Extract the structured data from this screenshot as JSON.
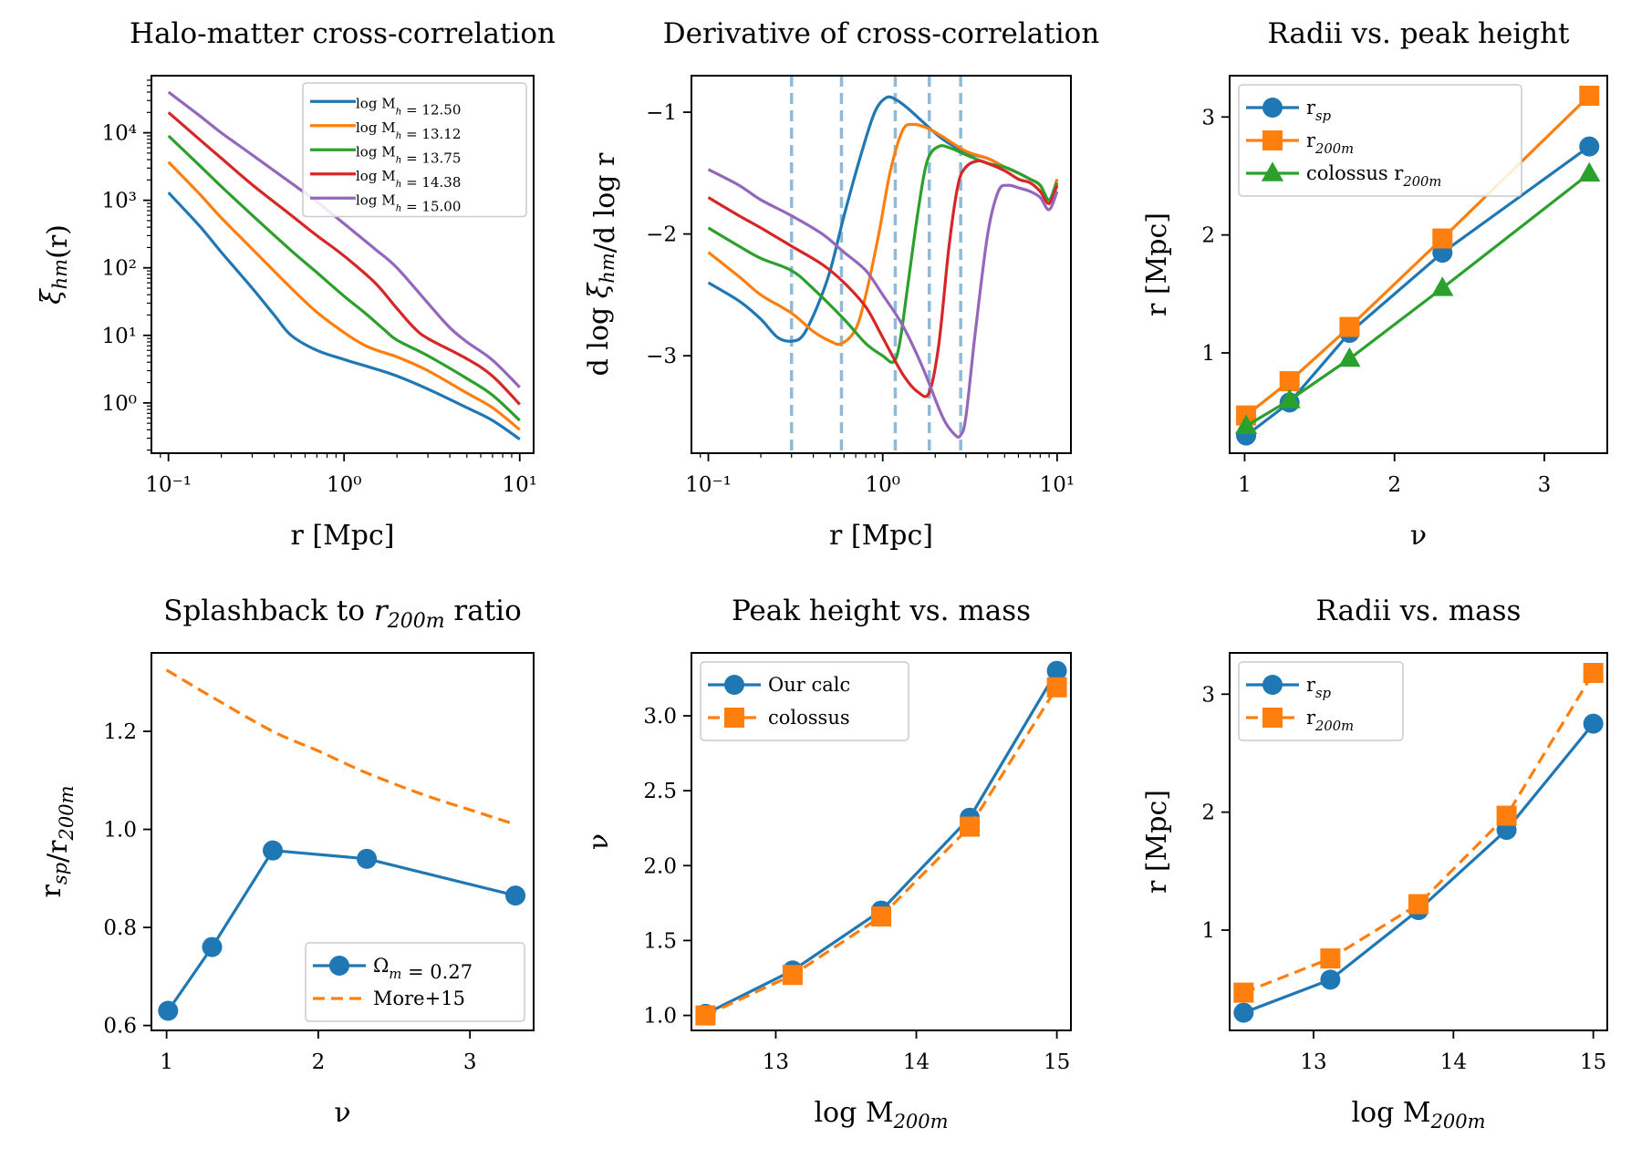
{
  "colors": {
    "blue": "#1f77b4",
    "orange": "#ff7f0e",
    "green": "#2ca02c",
    "red": "#d62728",
    "purple": "#9467bd"
  },
  "chart_data": [
    {
      "type": "line",
      "title": "Halo-matter cross-correlation",
      "xlabel": "r [Mpc]",
      "ylabel": "ξhm(r)",
      "xscale": "log",
      "yscale": "log",
      "xlim": [
        0.08,
        12
      ],
      "ylim": [
        0.18,
        70000
      ],
      "xticks": [
        {
          "v": 0.1,
          "label": "10⁻¹"
        },
        {
          "v": 1,
          "label": "10⁰"
        },
        {
          "v": 10,
          "label": "10¹"
        }
      ],
      "yticks": [
        {
          "v": 1,
          "label": "10⁰"
        },
        {
          "v": 10,
          "label": "10¹"
        },
        {
          "v": 100,
          "label": "10²"
        },
        {
          "v": 1000,
          "label": "10³"
        },
        {
          "v": 10000,
          "label": "10⁴"
        }
      ],
      "legend_position": "top-right",
      "series": [
        {
          "name": "log M_h = 12.50",
          "color": "blue",
          "x": [
            0.1,
            0.15,
            0.2,
            0.3,
            0.4,
            0.5,
            0.7,
            1.0,
            1.5,
            2,
            3,
            5,
            7,
            10
          ],
          "y": [
            1300,
            420,
            170,
            50,
            20,
            10,
            6,
            4.4,
            3.2,
            2.5,
            1.6,
            0.85,
            0.55,
            0.29
          ]
        },
        {
          "name": "log M_h = 13.12",
          "color": "orange",
          "x": [
            0.1,
            0.15,
            0.2,
            0.3,
            0.5,
            0.7,
            1.0,
            1.3,
            1.6,
            2,
            3,
            5,
            7,
            10
          ],
          "y": [
            3700,
            1250,
            550,
            190,
            50,
            22,
            11,
            7.2,
            5.8,
            4.8,
            3.0,
            1.4,
            0.85,
            0.4
          ]
        },
        {
          "name": "log M_h = 13.75",
          "color": "green",
          "x": [
            0.1,
            0.15,
            0.2,
            0.3,
            0.5,
            0.7,
            1.0,
            1.3,
            1.7,
            2,
            3,
            5,
            7,
            10
          ],
          "y": [
            9000,
            3300,
            1600,
            600,
            180,
            85,
            38,
            22,
            12,
            8.5,
            5.0,
            2.3,
            1.3,
            0.55
          ]
        },
        {
          "name": "log M_h = 14.38",
          "color": "red",
          "x": [
            0.1,
            0.15,
            0.2,
            0.3,
            0.5,
            0.7,
            1.0,
            1.5,
            2,
            2.5,
            3,
            5,
            7,
            10
          ],
          "y": [
            20000,
            8000,
            4200,
            1700,
            600,
            300,
            150,
            60,
            25,
            13,
            9,
            4.5,
            2.5,
            0.95
          ]
        },
        {
          "name": "log M_h = 15.00",
          "color": "purple",
          "x": [
            0.1,
            0.15,
            0.2,
            0.3,
            0.5,
            0.7,
            1.0,
            1.5,
            2,
            3,
            4,
            5,
            7,
            10
          ],
          "y": [
            40000,
            18000,
            10000,
            4700,
            1800,
            950,
            450,
            190,
            100,
            30,
            13,
            8,
            4.3,
            1.7
          ]
        }
      ]
    },
    {
      "type": "line",
      "title": "Derivative of cross-correlation",
      "xlabel": "r [Mpc]",
      "ylabel": "d log ξhm/d log r",
      "xscale": "log",
      "xlim": [
        0.08,
        12
      ],
      "ylim": [
        -3.8,
        -0.7
      ],
      "xticks": [
        {
          "v": 0.1,
          "label": "10⁻¹"
        },
        {
          "v": 1,
          "label": "10⁰"
        },
        {
          "v": 10,
          "label": "10¹"
        }
      ],
      "yticks": [
        {
          "v": -1,
          "label": "−1"
        },
        {
          "v": -2,
          "label": "−2"
        },
        {
          "v": -3,
          "label": "−3"
        }
      ],
      "vlines": [
        0.3,
        0.58,
        1.18,
        1.85,
        2.8
      ],
      "series": [
        {
          "name": "log M_h = 12.50",
          "color": "blue",
          "x": [
            0.1,
            0.15,
            0.2,
            0.25,
            0.3,
            0.35,
            0.42,
            0.5,
            0.6,
            0.75,
            0.9,
            1.05,
            1.2,
            1.4,
            1.7,
            2.2,
            3,
            4,
            5,
            6,
            7,
            8,
            9,
            10
          ],
          "y": [
            -2.4,
            -2.55,
            -2.7,
            -2.85,
            -2.88,
            -2.83,
            -2.6,
            -2.3,
            -1.85,
            -1.35,
            -1.0,
            -0.88,
            -0.9,
            -0.97,
            -1.08,
            -1.22,
            -1.33,
            -1.38,
            -1.45,
            -1.5,
            -1.55,
            -1.6,
            -1.72,
            -1.55
          ]
        },
        {
          "name": "log M_h = 13.12",
          "color": "orange",
          "x": [
            0.1,
            0.15,
            0.2,
            0.3,
            0.4,
            0.5,
            0.58,
            0.7,
            0.8,
            0.95,
            1.1,
            1.3,
            1.5,
            1.8,
            2.2,
            3,
            4,
            5,
            6,
            7,
            8,
            9,
            10
          ],
          "y": [
            -2.15,
            -2.35,
            -2.5,
            -2.65,
            -2.8,
            -2.88,
            -2.9,
            -2.78,
            -2.5,
            -2.0,
            -1.5,
            -1.15,
            -1.1,
            -1.13,
            -1.2,
            -1.32,
            -1.38,
            -1.45,
            -1.5,
            -1.55,
            -1.6,
            -1.75,
            -1.55
          ]
        },
        {
          "name": "log M_h = 13.75",
          "color": "green",
          "x": [
            0.1,
            0.15,
            0.2,
            0.3,
            0.4,
            0.6,
            0.8,
            1.0,
            1.15,
            1.25,
            1.4,
            1.6,
            1.8,
            2.1,
            2.5,
            3,
            4,
            5,
            6,
            7,
            8,
            9,
            10
          ],
          "y": [
            -1.95,
            -2.1,
            -2.2,
            -2.3,
            -2.45,
            -2.7,
            -2.9,
            -3.0,
            -3.05,
            -2.9,
            -2.4,
            -1.8,
            -1.4,
            -1.28,
            -1.3,
            -1.35,
            -1.42,
            -1.45,
            -1.5,
            -1.55,
            -1.6,
            -1.72,
            -1.58
          ]
        },
        {
          "name": "log M_h = 14.38",
          "color": "red",
          "x": [
            0.1,
            0.15,
            0.2,
            0.3,
            0.45,
            0.6,
            0.8,
            1.0,
            1.3,
            1.6,
            1.85,
            2.1,
            2.4,
            2.7,
            3.0,
            3.5,
            4,
            5,
            6,
            7,
            8,
            9,
            10
          ],
          "y": [
            -1.7,
            -1.85,
            -1.95,
            -2.1,
            -2.25,
            -2.4,
            -2.6,
            -2.85,
            -3.15,
            -3.3,
            -3.3,
            -2.9,
            -2.1,
            -1.6,
            -1.45,
            -1.4,
            -1.42,
            -1.48,
            -1.55,
            -1.58,
            -1.65,
            -1.75,
            -1.6
          ]
        },
        {
          "name": "log M_h = 15.00",
          "color": "purple",
          "x": [
            0.1,
            0.15,
            0.2,
            0.3,
            0.45,
            0.6,
            0.8,
            1.0,
            1.3,
            1.7,
            2.2,
            2.6,
            2.8,
            3.0,
            3.4,
            4,
            4.6,
            5.2,
            6,
            7,
            8,
            9,
            10
          ],
          "y": [
            -1.47,
            -1.6,
            -1.72,
            -1.85,
            -2.0,
            -2.15,
            -2.3,
            -2.5,
            -2.75,
            -3.1,
            -3.5,
            -3.65,
            -3.65,
            -3.5,
            -2.8,
            -2.0,
            -1.65,
            -1.6,
            -1.62,
            -1.65,
            -1.7,
            -1.8,
            -1.65
          ]
        }
      ]
    },
    {
      "type": "line",
      "title": "Radii vs. peak height",
      "xlabel": "ν",
      "ylabel": "r [Mpc]",
      "xlim": [
        0.9,
        3.42
      ],
      "ylim": [
        0.15,
        3.35
      ],
      "xticks": [
        {
          "v": 1,
          "label": "1"
        },
        {
          "v": 2,
          "label": "2"
        },
        {
          "v": 3,
          "label": "3"
        }
      ],
      "yticks": [
        {
          "v": 1,
          "label": "1"
        },
        {
          "v": 2,
          "label": "2"
        },
        {
          "v": 3,
          "label": "3"
        }
      ],
      "legend_position": "top-left",
      "series": [
        {
          "name": "r_sp",
          "color": "blue",
          "marker": "circle",
          "x": [
            1.01,
            1.3,
            1.7,
            2.32,
            3.3
          ],
          "y": [
            0.3,
            0.58,
            1.17,
            1.85,
            2.75
          ]
        },
        {
          "name": "r_200m",
          "color": "orange",
          "marker": "square",
          "x": [
            1.01,
            1.3,
            1.7,
            2.32,
            3.3
          ],
          "y": [
            0.47,
            0.76,
            1.22,
            1.97,
            3.18
          ]
        },
        {
          "name": "colossus r_200m",
          "color": "green",
          "marker": "triangle",
          "x": [
            1.01,
            1.3,
            1.7,
            2.32,
            3.3
          ],
          "y": [
            0.38,
            0.6,
            0.95,
            1.55,
            2.52
          ]
        }
      ]
    },
    {
      "type": "line",
      "title": "Splashback to r_200m ratio",
      "xlabel": "ν",
      "ylabel": "r_sp/r_200m",
      "xlim": [
        0.9,
        3.42
      ],
      "ylim": [
        0.59,
        1.36
      ],
      "xticks": [
        {
          "v": 1,
          "label": "1"
        },
        {
          "v": 2,
          "label": "2"
        },
        {
          "v": 3,
          "label": "3"
        }
      ],
      "yticks": [
        {
          "v": 0.6,
          "label": "0.6"
        },
        {
          "v": 0.8,
          "label": "0.8"
        },
        {
          "v": 1.0,
          "label": "1.0"
        },
        {
          "v": 1.2,
          "label": "1.2"
        }
      ],
      "legend_position": "lower-right",
      "series": [
        {
          "name": "Ω_m = 0.27",
          "color": "blue",
          "marker": "circle",
          "x": [
            1.01,
            1.3,
            1.7,
            2.32,
            3.3
          ],
          "y": [
            0.63,
            0.76,
            0.957,
            0.94,
            0.865
          ]
        },
        {
          "name": "More+15",
          "color": "orange",
          "dash": true,
          "x": [
            1.0,
            1.3,
            1.7,
            2.0,
            2.32,
            2.7,
            3.0,
            3.3
          ],
          "y": [
            1.325,
            1.27,
            1.2,
            1.16,
            1.115,
            1.07,
            1.04,
            1.01
          ]
        }
      ]
    },
    {
      "type": "line",
      "title": "Peak height vs. mass",
      "xlabel": "log M_200m",
      "ylabel": "ν",
      "xlim": [
        12.4,
        15.1
      ],
      "ylim": [
        0.9,
        3.42
      ],
      "xticks": [
        {
          "v": 13,
          "label": "13"
        },
        {
          "v": 14,
          "label": "14"
        },
        {
          "v": 15,
          "label": "15"
        }
      ],
      "yticks": [
        {
          "v": 1.0,
          "label": "1.0"
        },
        {
          "v": 1.5,
          "label": "1.5"
        },
        {
          "v": 2.0,
          "label": "2.0"
        },
        {
          "v": 2.5,
          "label": "2.5"
        },
        {
          "v": 3.0,
          "label": "3.0"
        }
      ],
      "legend_position": "top-left",
      "series": [
        {
          "name": "Our calc",
          "color": "blue",
          "marker": "circle",
          "x": [
            12.5,
            13.12,
            13.75,
            14.38,
            15.0
          ],
          "y": [
            1.01,
            1.3,
            1.7,
            2.32,
            3.3
          ]
        },
        {
          "name": "colossus",
          "color": "orange",
          "marker": "square",
          "dash": true,
          "x": [
            12.5,
            13.12,
            13.75,
            14.38,
            15.0
          ],
          "y": [
            1.0,
            1.27,
            1.66,
            2.26,
            3.19
          ]
        }
      ]
    },
    {
      "type": "line",
      "title": "Radii vs. mass",
      "xlabel": "log M_200m",
      "ylabel": "r [Mpc]",
      "xlim": [
        12.4,
        15.1
      ],
      "ylim": [
        0.15,
        3.35
      ],
      "xticks": [
        {
          "v": 13,
          "label": "13"
        },
        {
          "v": 14,
          "label": "14"
        },
        {
          "v": 15,
          "label": "15"
        }
      ],
      "yticks": [
        {
          "v": 1,
          "label": "1"
        },
        {
          "v": 2,
          "label": "2"
        },
        {
          "v": 3,
          "label": "3"
        }
      ],
      "legend_position": "top-left",
      "series": [
        {
          "name": "r_sp",
          "color": "blue",
          "marker": "circle",
          "x": [
            12.5,
            13.12,
            13.75,
            14.38,
            15.0
          ],
          "y": [
            0.3,
            0.58,
            1.17,
            1.85,
            2.75
          ]
        },
        {
          "name": "r_200m",
          "color": "orange",
          "marker": "square",
          "dash": true,
          "x": [
            12.5,
            13.12,
            13.75,
            14.38,
            15.0
          ],
          "y": [
            0.47,
            0.76,
            1.22,
            1.97,
            3.18
          ]
        }
      ]
    }
  ]
}
